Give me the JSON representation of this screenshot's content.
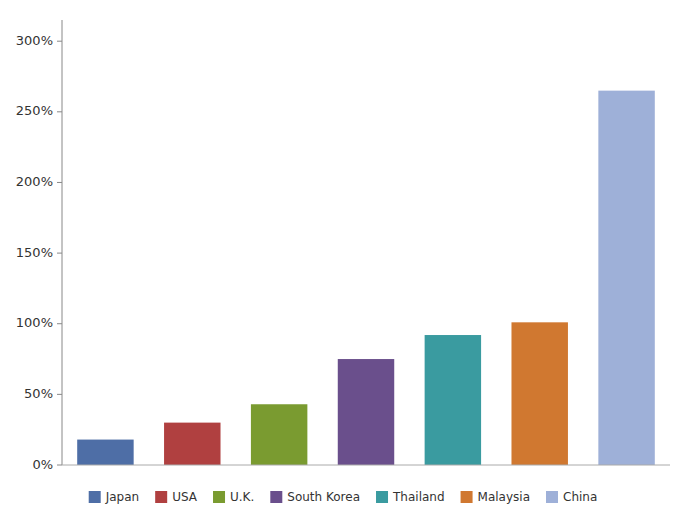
{
  "chart_data": {
    "type": "bar",
    "categories": [
      "Japan",
      "USA",
      "U.K.",
      "South Korea",
      "Thailand",
      "Malaysia",
      "China"
    ],
    "values": [
      0.18,
      0.3,
      0.43,
      0.75,
      0.92,
      1.01,
      2.65
    ],
    "colors": [
      "#4E6EA6",
      "#B04040",
      "#7A9B30",
      "#6A4F8C",
      "#3A9BA0",
      "#D07830",
      "#9EB0D8"
    ],
    "ylim": [
      0,
      3.15
    ],
    "yticks": [
      {
        "value": 0.0,
        "label": "0%"
      },
      {
        "value": 0.5,
        "label": "50%"
      },
      {
        "value": 1.0,
        "label": "100%"
      },
      {
        "value": 1.5,
        "label": "150%"
      },
      {
        "value": 2.0,
        "label": "200%"
      },
      {
        "value": 2.5,
        "label": "250%"
      },
      {
        "value": 3.0,
        "label": "300%"
      }
    ],
    "grid": false,
    "legend": "bottom",
    "tick_labels": "y"
  }
}
